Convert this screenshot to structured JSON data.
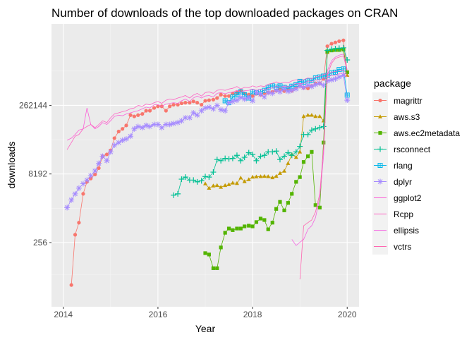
{
  "chart_data": {
    "type": "line",
    "title": "Number of downloads of the top downloaded packages on CRAN",
    "xlabel": "Year",
    "ylabel": "downloads",
    "x_ticks": [
      2014,
      2016,
      2018,
      2020
    ],
    "y_scale": "log2",
    "y_ticks": [
      256,
      8192,
      262144
    ],
    "xlim": [
      2013.75,
      2020.25
    ],
    "ylim": [
      10,
      16000000
    ],
    "legend_title": "package",
    "legend_position": "right",
    "grid": true,
    "panel_background": "#EBEBEB",
    "series": [
      {
        "name": "magrittr",
        "color": "#F8766D",
        "marker": "circle",
        "x": [
          2014.17,
          2014.25,
          2014.33,
          2014.42,
          2014.5,
          2014.58,
          2014.67,
          2014.75,
          2014.83,
          2014.92,
          2015.0,
          2015.08,
          2015.17,
          2015.25,
          2015.33,
          2015.42,
          2015.5,
          2015.58,
          2015.67,
          2015.75,
          2015.83,
          2015.92,
          2016.0,
          2016.08,
          2016.17,
          2016.25,
          2016.33,
          2016.42,
          2016.5,
          2016.58,
          2016.67,
          2016.75,
          2016.83,
          2016.92,
          2017.0,
          2017.08,
          2017.17,
          2017.25,
          2017.33,
          2017.42,
          2017.5,
          2017.58,
          2017.67,
          2017.75,
          2017.83,
          2017.92,
          2018.0,
          2018.08,
          2018.17,
          2018.25,
          2018.33,
          2018.42,
          2018.5,
          2018.58,
          2018.67,
          2018.75,
          2018.83,
          2018.92,
          2019.0,
          2019.08,
          2019.17,
          2019.25,
          2019.33,
          2019.42,
          2019.5,
          2019.58,
          2019.67,
          2019.75,
          2019.83,
          2019.92,
          2020.0
        ],
        "y": [
          30,
          380,
          700,
          3000,
          5500,
          6500,
          8000,
          11000,
          20000,
          22000,
          27000,
          50000,
          70000,
          80000,
          95000,
          160000,
          150000,
          160000,
          170000,
          200000,
          200000,
          230000,
          250000,
          250000,
          200000,
          250000,
          270000,
          270000,
          290000,
          300000,
          300000,
          320000,
          300000,
          270000,
          330000,
          340000,
          350000,
          380000,
          450000,
          420000,
          420000,
          480000,
          500000,
          550000,
          480000,
          450000,
          420000,
          470000,
          450000,
          480000,
          500000,
          520000,
          550000,
          580000,
          540000,
          600000,
          550000,
          650000,
          700000,
          640000,
          620000,
          700000,
          800000,
          800000,
          1000000,
          5200000,
          5900000,
          6300000,
          6700000,
          7000000,
          1400000
        ]
      },
      {
        "name": "aws.s3",
        "color": "#C49A00",
        "marker": "triangle",
        "x": [
          2017.0,
          2017.08,
          2017.17,
          2017.25,
          2017.33,
          2017.42,
          2017.5,
          2017.58,
          2017.67,
          2017.75,
          2017.83,
          2017.92,
          2018.0,
          2018.08,
          2018.17,
          2018.25,
          2018.33,
          2018.42,
          2018.5,
          2018.58,
          2018.67,
          2018.75,
          2018.83,
          2018.92,
          2019.0,
          2019.08,
          2019.17,
          2019.25,
          2019.33,
          2019.42,
          2019.5,
          2019.58,
          2019.67,
          2019.75,
          2019.83,
          2019.92,
          2020.0
        ],
        "y": [
          5000,
          4000,
          4500,
          4600,
          4200,
          4600,
          4800,
          5200,
          5100,
          6700,
          5600,
          6200,
          7000,
          7100,
          7200,
          7300,
          7200,
          6800,
          7300,
          8500,
          9500,
          14000,
          22000,
          19000,
          25000,
          150000,
          160000,
          160000,
          150000,
          150000,
          120000,
          3800000,
          4200000,
          4300000,
          4400000,
          4600000,
          1200000
        ]
      },
      {
        "name": "aws.ec2metadata",
        "color": "#53B400",
        "marker": "square",
        "x": [
          2017.0,
          2017.08,
          2017.17,
          2017.25,
          2017.33,
          2017.42,
          2017.5,
          2017.58,
          2017.67,
          2017.75,
          2017.83,
          2017.92,
          2018.0,
          2018.08,
          2018.17,
          2018.25,
          2018.33,
          2018.42,
          2018.5,
          2018.58,
          2018.67,
          2018.75,
          2018.83,
          2018.92,
          2019.0,
          2019.08,
          2019.17,
          2019.25,
          2019.33,
          2019.42,
          2019.5,
          2019.58,
          2019.67,
          2019.75,
          2019.83,
          2019.92,
          2020.0
        ],
        "y": [
          150,
          140,
          70,
          70,
          200,
          420,
          520,
          480,
          520,
          520,
          580,
          600,
          580,
          720,
          860,
          800,
          500,
          700,
          1400,
          2000,
          1300,
          1900,
          3000,
          5500,
          7000,
          15000,
          20000,
          25000,
          1700,
          1500,
          40000,
          4000000,
          4200000,
          4300000,
          4300000,
          4400000,
          1400000
        ]
      },
      {
        "name": "rsconnect",
        "color": "#00C094",
        "marker": "plus",
        "x": [
          2016.33,
          2016.42,
          2016.5,
          2016.58,
          2016.67,
          2016.75,
          2016.83,
          2016.92,
          2017.0,
          2017.08,
          2017.17,
          2017.25,
          2017.33,
          2017.42,
          2017.5,
          2017.58,
          2017.67,
          2017.75,
          2017.83,
          2017.92,
          2018.0,
          2018.08,
          2018.17,
          2018.25,
          2018.33,
          2018.42,
          2018.5,
          2018.58,
          2018.67,
          2018.75,
          2018.83,
          2018.92,
          2019.0,
          2019.08,
          2019.17,
          2019.25,
          2019.33,
          2019.42,
          2019.5,
          2019.58,
          2019.67,
          2019.75,
          2019.83,
          2019.92,
          2020.0
        ],
        "y": [
          2800,
          3000,
          6300,
          7000,
          6000,
          6000,
          5500,
          5800,
          7200,
          7000,
          9000,
          17000,
          16000,
          18000,
          17500,
          18000,
          21000,
          16000,
          19000,
          24000,
          22000,
          16000,
          20000,
          21000,
          25000,
          25000,
          26000,
          17000,
          20000,
          24000,
          21000,
          25000,
          33000,
          60000,
          60000,
          75000,
          80000,
          85000,
          90000,
          4200000,
          4500000,
          4600000,
          4700000,
          4800000,
          2600000
        ]
      },
      {
        "name": "rlang",
        "color": "#00B6EB",
        "marker": "square-cross",
        "x": [
          2017.42,
          2017.5,
          2017.58,
          2017.67,
          2017.75,
          2017.83,
          2017.92,
          2018.0,
          2018.08,
          2018.17,
          2018.25,
          2018.33,
          2018.42,
          2018.5,
          2018.58,
          2018.67,
          2018.75,
          2018.83,
          2018.92,
          2019.0,
          2019.08,
          2019.17,
          2019.25,
          2019.33,
          2019.42,
          2019.5,
          2019.58,
          2019.67,
          2019.75,
          2019.83,
          2019.92,
          2020.0
        ],
        "y": [
          330000,
          300000,
          400000,
          450000,
          520000,
          450000,
          380000,
          520000,
          500000,
          520000,
          560000,
          650000,
          700000,
          660000,
          700000,
          650000,
          620000,
          690000,
          760000,
          880000,
          850000,
          900000,
          920000,
          1050000,
          1100000,
          1150000,
          1200000,
          1350000,
          1400000,
          1600000,
          1650000,
          440000
        ]
      },
      {
        "name": "dplyr",
        "color": "#A58AFF",
        "marker": "asterisk",
        "x": [
          2014.08,
          2014.17,
          2014.25,
          2014.33,
          2014.42,
          2014.5,
          2014.58,
          2014.67,
          2014.75,
          2014.83,
          2014.92,
          2015.0,
          2015.08,
          2015.17,
          2015.25,
          2015.33,
          2015.42,
          2015.5,
          2015.58,
          2015.67,
          2015.75,
          2015.83,
          2015.92,
          2016.0,
          2016.08,
          2016.17,
          2016.25,
          2016.33,
          2016.42,
          2016.5,
          2016.58,
          2016.67,
          2016.75,
          2016.83,
          2016.92,
          2017.0,
          2017.08,
          2017.17,
          2017.25,
          2017.33,
          2017.42,
          2017.5,
          2017.58,
          2017.67,
          2017.75,
          2017.83,
          2017.92,
          2018.0,
          2018.08,
          2018.17,
          2018.25,
          2018.33,
          2018.42,
          2018.5,
          2018.58,
          2018.67,
          2018.75,
          2018.83,
          2018.92,
          2019.0,
          2019.08,
          2019.17,
          2019.25,
          2019.33,
          2019.42,
          2019.5,
          2019.58,
          2019.67,
          2019.75,
          2019.83,
          2019.92,
          2020.0
        ],
        "y": [
          1500,
          2200,
          3000,
          4000,
          5000,
          6000,
          7500,
          9500,
          14000,
          20000,
          16000,
          25000,
          35000,
          40000,
          45000,
          48000,
          55000,
          80000,
          90000,
          85000,
          95000,
          90000,
          100000,
          100000,
          85000,
          100000,
          100000,
          105000,
          110000,
          120000,
          140000,
          140000,
          180000,
          160000,
          200000,
          230000,
          240000,
          220000,
          260000,
          210000,
          200000,
          300000,
          320000,
          340000,
          390000,
          360000,
          390000,
          330000,
          500000,
          460000,
          400000,
          500000,
          480000,
          560000,
          520000,
          600000,
          530000,
          560000,
          600000,
          700000,
          650000,
          720000,
          680000,
          750000,
          800000,
          720000,
          900000,
          950000,
          1000000,
          1100000,
          1200000,
          340000
        ]
      },
      {
        "name": "ggplot2",
        "color": "#FB61D7",
        "marker": "none",
        "x": [
          2014.08,
          2014.17,
          2014.25,
          2014.33,
          2014.42,
          2014.5,
          2014.58,
          2014.67,
          2014.75,
          2014.83,
          2014.92,
          2015.0,
          2015.08,
          2015.17,
          2015.25,
          2015.33,
          2015.42,
          2015.5,
          2015.58,
          2015.67,
          2015.75,
          2015.83,
          2015.92,
          2016.0,
          2016.08,
          2016.17,
          2016.25,
          2016.33,
          2016.42,
          2016.5,
          2016.58,
          2016.67,
          2016.75,
          2016.83,
          2016.92,
          2017.0,
          2017.08,
          2017.17,
          2017.25,
          2017.33,
          2017.42,
          2017.5,
          2017.58,
          2017.67,
          2017.75,
          2017.83,
          2017.92,
          2018.0,
          2018.08,
          2018.17,
          2018.25,
          2018.33,
          2018.42,
          2018.5,
          2018.58,
          2018.67,
          2018.75,
          2018.83,
          2018.92,
          2019.0,
          2019.08,
          2019.17,
          2019.25,
          2019.33,
          2019.42,
          2019.5,
          2019.58,
          2019.67,
          2019.75,
          2019.83,
          2019.92,
          2020.0
        ],
        "y": [
          45000,
          50000,
          60000,
          75000,
          80000,
          230000,
          100000,
          80000,
          90000,
          110000,
          100000,
          120000,
          150000,
          160000,
          155000,
          170000,
          180000,
          190000,
          200000,
          220000,
          240000,
          230000,
          270000,
          270000,
          250000,
          280000,
          290000,
          300000,
          290000,
          330000,
          360000,
          320000,
          380000,
          420000,
          380000,
          420000,
          430000,
          400000,
          480000,
          500000,
          470000,
          500000,
          510000,
          560000,
          510000,
          550000,
          560000,
          600000,
          560000,
          590000,
          560000,
          620000,
          630000,
          700000,
          650000,
          700000,
          670000,
          720000,
          800000,
          780000,
          800000,
          900000,
          880000,
          950000,
          950000,
          1050000,
          1100000,
          1200000,
          1200000,
          1300000,
          1350000,
          1100000
        ]
      },
      {
        "name": "Rcpp",
        "color": "#FF61C3",
        "marker": "none",
        "x": [
          2014.08,
          2014.17,
          2014.25,
          2014.33,
          2014.42,
          2014.5,
          2014.58,
          2014.67,
          2014.75,
          2014.83,
          2014.92,
          2015.0,
          2015.08,
          2015.17,
          2015.25,
          2015.33,
          2015.42,
          2015.5,
          2015.58,
          2015.67,
          2015.75,
          2015.83,
          2015.92,
          2016.0,
          2016.08,
          2016.17,
          2016.25,
          2016.33,
          2016.42,
          2016.5,
          2016.58,
          2016.67,
          2016.75,
          2016.83,
          2016.92,
          2017.0,
          2017.08,
          2017.17,
          2017.25,
          2017.33,
          2017.42,
          2017.5,
          2017.58,
          2017.67,
          2017.75,
          2017.83,
          2017.92,
          2018.0,
          2018.08,
          2018.17,
          2018.25,
          2018.33,
          2018.42,
          2018.5,
          2018.58,
          2018.67,
          2018.75,
          2018.83,
          2018.92,
          2019.0,
          2019.08,
          2019.17,
          2019.25,
          2019.33,
          2019.42,
          2019.5,
          2019.58,
          2019.67,
          2019.75,
          2019.83,
          2019.92,
          2020.0
        ],
        "y": [
          28000,
          40000,
          55000,
          60000,
          80000,
          90000,
          100000,
          85000,
          100000,
          120000,
          110000,
          140000,
          170000,
          180000,
          190000,
          200000,
          220000,
          230000,
          260000,
          250000,
          280000,
          270000,
          300000,
          320000,
          290000,
          340000,
          360000,
          350000,
          380000,
          400000,
          430000,
          380000,
          440000,
          480000,
          420000,
          500000,
          520000,
          480000,
          560000,
          580000,
          560000,
          600000,
          620000,
          680000,
          600000,
          650000,
          640000,
          700000,
          660000,
          700000,
          680000,
          760000,
          800000,
          860000,
          800000,
          850000,
          820000,
          900000,
          960000,
          920000,
          960000,
          1050000,
          1000000,
          1100000,
          1150000,
          1250000,
          1300000,
          1400000,
          1450000,
          1500000,
          1550000,
          1300000
        ]
      },
      {
        "name": "ellipsis",
        "color": "#F564E3",
        "marker": "none",
        "x": [
          2018.83,
          2018.92,
          2019.0,
          2019.08,
          2019.17,
          2019.25,
          2019.33,
          2019.42,
          2019.5,
          2019.58,
          2019.67,
          2019.75,
          2019.83,
          2019.92,
          2020.0
        ],
        "y": [
          300,
          220,
          260,
          300,
          500,
          600,
          900,
          2500,
          20000,
          1500000,
          2500000,
          3000000,
          3300000,
          3500000,
          1600000
        ]
      },
      {
        "name": "vctrs",
        "color": "#FF64B0",
        "marker": "none",
        "x": [
          2019.0,
          2019.08,
          2019.17,
          2019.25,
          2019.33,
          2019.42,
          2019.5,
          2019.58,
          2019.67,
          2019.75,
          2019.83,
          2019.92,
          2020.0
        ],
        "y": [
          40,
          600,
          700,
          800,
          1200,
          3000,
          30000,
          1200000,
          2200000,
          2800000,
          3000000,
          3200000,
          1500000
        ]
      }
    ]
  }
}
